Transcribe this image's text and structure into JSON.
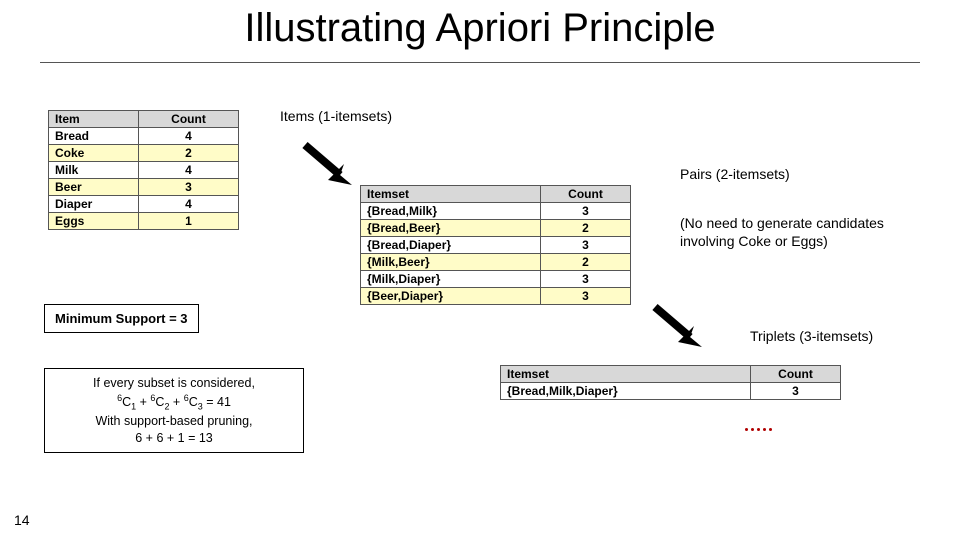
{
  "title": "Illustrating Apriori Principle",
  "labels": {
    "items": "Items (1-itemsets)",
    "pairs": "Pairs (2-itemsets)",
    "note": "(No need to generate candidates involving Coke or Eggs)",
    "triplets": "Triplets (3-itemsets)"
  },
  "support_box": "Minimum Support = 3",
  "calc_box": {
    "line1": "If every subset is considered,",
    "line2_html": "<span class='sup'>6</span>C<span class='sub'>1</span> + <span class='sup'>6</span>C<span class='sub'>2</span> + <span class='sup'>6</span>C<span class='sub'>3</span> = 41",
    "line3": "With support-based pruning,",
    "line4": "6 + 6 + 1 = 13"
  },
  "table1": {
    "headers": [
      "Item",
      "Count"
    ],
    "rows": [
      [
        "Bread",
        "4"
      ],
      [
        "Coke",
        "2"
      ],
      [
        "Milk",
        "4"
      ],
      [
        "Beer",
        "3"
      ],
      [
        "Diaper",
        "4"
      ],
      [
        "Eggs",
        "1"
      ]
    ]
  },
  "table2": {
    "headers": [
      "Itemset",
      "Count"
    ],
    "rows": [
      [
        "{Bread,Milk}",
        "3"
      ],
      [
        "{Bread,Beer}",
        "2"
      ],
      [
        "{Bread,Diaper}",
        "3"
      ],
      [
        "{Milk,Beer}",
        "2"
      ],
      [
        "{Milk,Diaper}",
        "3"
      ],
      [
        "{Beer,Diaper}",
        "3"
      ]
    ]
  },
  "table3": {
    "headers": [
      "Itemset",
      "Count"
    ],
    "rows": [
      [
        "{Bread,Milk,Diaper}",
        "3"
      ]
    ]
  },
  "page_number": "14",
  "colors": {
    "header_bg": "#d8d8d8",
    "stripe_bg": "#fffcc8",
    "arrow": "#000000",
    "dot": "#b00000"
  }
}
